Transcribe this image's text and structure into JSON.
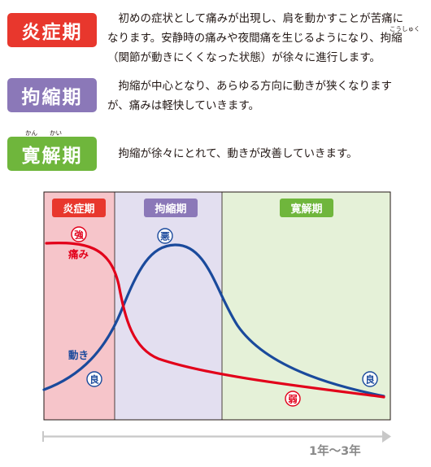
{
  "colors": {
    "acute": "#e8372d",
    "frozen": "#8b78b8",
    "recovery": "#6fb63c",
    "acute_bg": "#f6c5ca",
    "frozen_bg": "#e3dff0",
    "recovery_bg": "#e5f1d8",
    "pain_line": "#e2001a",
    "motion_line": "#1a4a9c",
    "arrow": "#c8c8c8"
  },
  "phases": [
    {
      "name": "炎症期",
      "lines": [
        "　初めの症状として痛みが出現し、肩を動かすことが苦痛に",
        "なります。安静時の痛みや夜間痛を生じるようになり、拘縮",
        "（関節が動きにくくなった状態）が徐々に進行します。"
      ],
      "ruby": "こうしゅく"
    },
    {
      "name": "拘縮期",
      "lines": [
        "　拘縮が中心となり、あらゆる方向に動きが狭くなります",
        "が、痛みは軽快していきます。"
      ]
    },
    {
      "name": "寛解期",
      "lines": [
        "　拘縮が徐々にとれて、動きが改善していきます。"
      ],
      "ruby_left": "かん",
      "ruby_right": "かい"
    }
  ],
  "diagram": {
    "phase_labels": [
      "炎症期",
      "拘縮期",
      "寛解期"
    ],
    "pain_label": "痛み",
    "motion_label": "動き",
    "marker_strong": "強",
    "marker_weak": "弱",
    "marker_bad": "悪",
    "marker_good": "良",
    "timeline": "1年〜3年"
  }
}
